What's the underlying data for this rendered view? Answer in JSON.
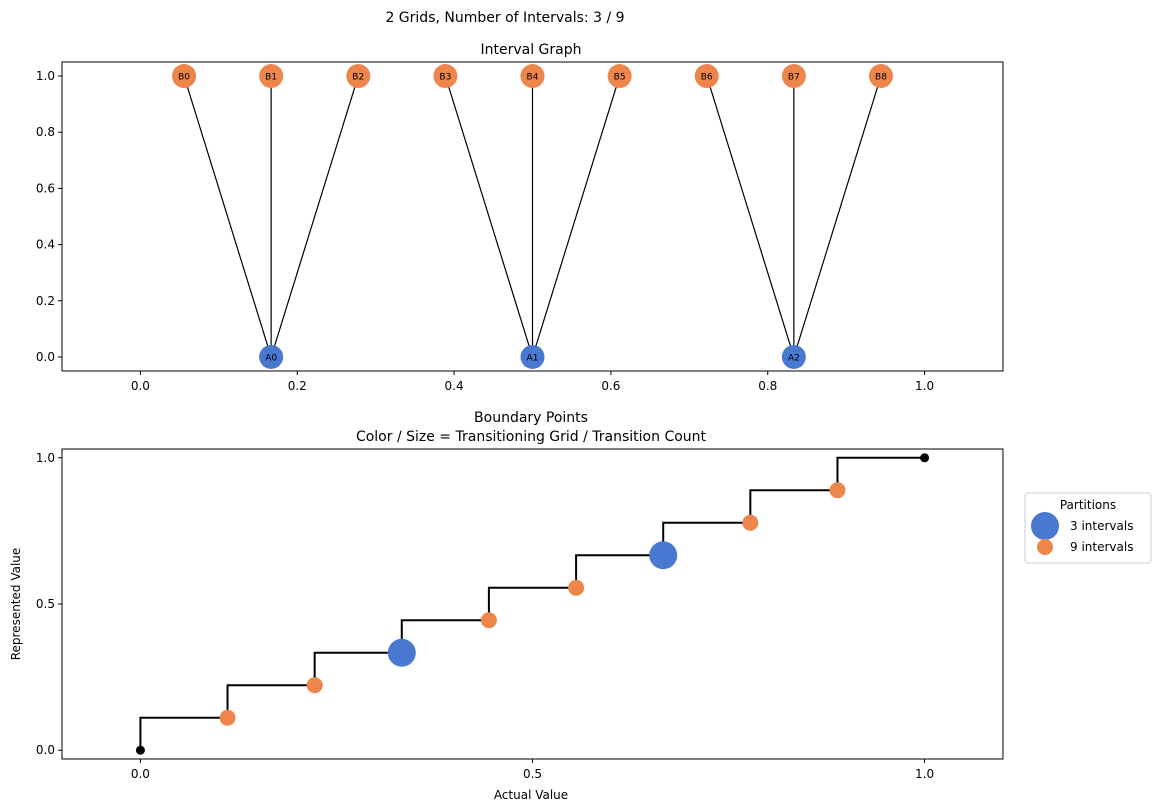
{
  "suptitle": "2 Grids, Number of Intervals: 3 / 9",
  "colors": {
    "grid_a": "#4878d0",
    "grid_b": "#ee854a",
    "edge": "#000000",
    "endpoint": "#000000"
  },
  "chart_data": [
    {
      "type": "scatter",
      "title": "Interval Graph",
      "xlabel": "",
      "ylabel": "",
      "xlim": [
        -0.1,
        1.1
      ],
      "ylim": [
        -0.05,
        1.05
      ],
      "xticks": [
        "0.0",
        "0.2",
        "0.4",
        "0.6",
        "0.8",
        "1.0"
      ],
      "yticks": [
        "0.0",
        "0.2",
        "0.4",
        "0.6",
        "0.8",
        "1.0"
      ],
      "grid": false,
      "nodes": [
        {
          "label": "A0",
          "x": 0.1667,
          "y": 0,
          "group": "A"
        },
        {
          "label": "A1",
          "x": 0.5,
          "y": 0,
          "group": "A"
        },
        {
          "label": "A2",
          "x": 0.8333,
          "y": 0,
          "group": "A"
        },
        {
          "label": "B0",
          "x": 0.0556,
          "y": 1,
          "group": "B"
        },
        {
          "label": "B1",
          "x": 0.1667,
          "y": 1,
          "group": "B"
        },
        {
          "label": "B2",
          "x": 0.2778,
          "y": 1,
          "group": "B"
        },
        {
          "label": "B3",
          "x": 0.3889,
          "y": 1,
          "group": "B"
        },
        {
          "label": "B4",
          "x": 0.5,
          "y": 1,
          "group": "B"
        },
        {
          "label": "B5",
          "x": 0.6111,
          "y": 1,
          "group": "B"
        },
        {
          "label": "B6",
          "x": 0.7222,
          "y": 1,
          "group": "B"
        },
        {
          "label": "B7",
          "x": 0.8333,
          "y": 1,
          "group": "B"
        },
        {
          "label": "B8",
          "x": 0.9444,
          "y": 1,
          "group": "B"
        }
      ],
      "edges": [
        [
          "A0",
          "B0"
        ],
        [
          "A0",
          "B1"
        ],
        [
          "A0",
          "B2"
        ],
        [
          "A1",
          "B3"
        ],
        [
          "A1",
          "B4"
        ],
        [
          "A1",
          "B5"
        ],
        [
          "A2",
          "B6"
        ],
        [
          "A2",
          "B7"
        ],
        [
          "A2",
          "B8"
        ]
      ]
    },
    {
      "type": "line",
      "title": "Boundary Points",
      "subtitle": "Color / Size = Transitioning Grid / Transition Count",
      "xlabel": "Actual Value",
      "ylabel": "Represented Value",
      "xlim": [
        -0.1,
        1.1
      ],
      "ylim": [
        -0.03,
        1.03
      ],
      "xticks": [
        "0.0",
        "0.5",
        "1.0"
      ],
      "yticks": [
        "0.0",
        "0.5",
        "1.0"
      ],
      "grid": false,
      "legend": {
        "title": "Partitions",
        "position": "outside-right",
        "entries": [
          {
            "label": "3 intervals",
            "group": "3"
          },
          {
            "label": "9 intervals",
            "group": "9"
          }
        ]
      },
      "step_x": [
        0,
        0.1111,
        0.2222,
        0.3333,
        0.4444,
        0.5556,
        0.6667,
        0.7778,
        0.8889,
        1.0
      ],
      "step_y": [
        0.1111,
        0.2222,
        0.3333,
        0.4444,
        0.5556,
        0.6667,
        0.7778,
        0.8889,
        1.0
      ],
      "points": [
        {
          "x": 0,
          "y": 0,
          "group": "end"
        },
        {
          "x": 0.1111,
          "y": 0.1111,
          "group": "9"
        },
        {
          "x": 0.2222,
          "y": 0.2222,
          "group": "9"
        },
        {
          "x": 0.3333,
          "y": 0.3333,
          "group": "3"
        },
        {
          "x": 0.4444,
          "y": 0.4444,
          "group": "9"
        },
        {
          "x": 0.5556,
          "y": 0.5556,
          "group": "9"
        },
        {
          "x": 0.6667,
          "y": 0.6667,
          "group": "3"
        },
        {
          "x": 0.7778,
          "y": 0.7778,
          "group": "9"
        },
        {
          "x": 0.8889,
          "y": 0.8889,
          "group": "9"
        },
        {
          "x": 1.0,
          "y": 1.0,
          "group": "end"
        }
      ]
    }
  ]
}
